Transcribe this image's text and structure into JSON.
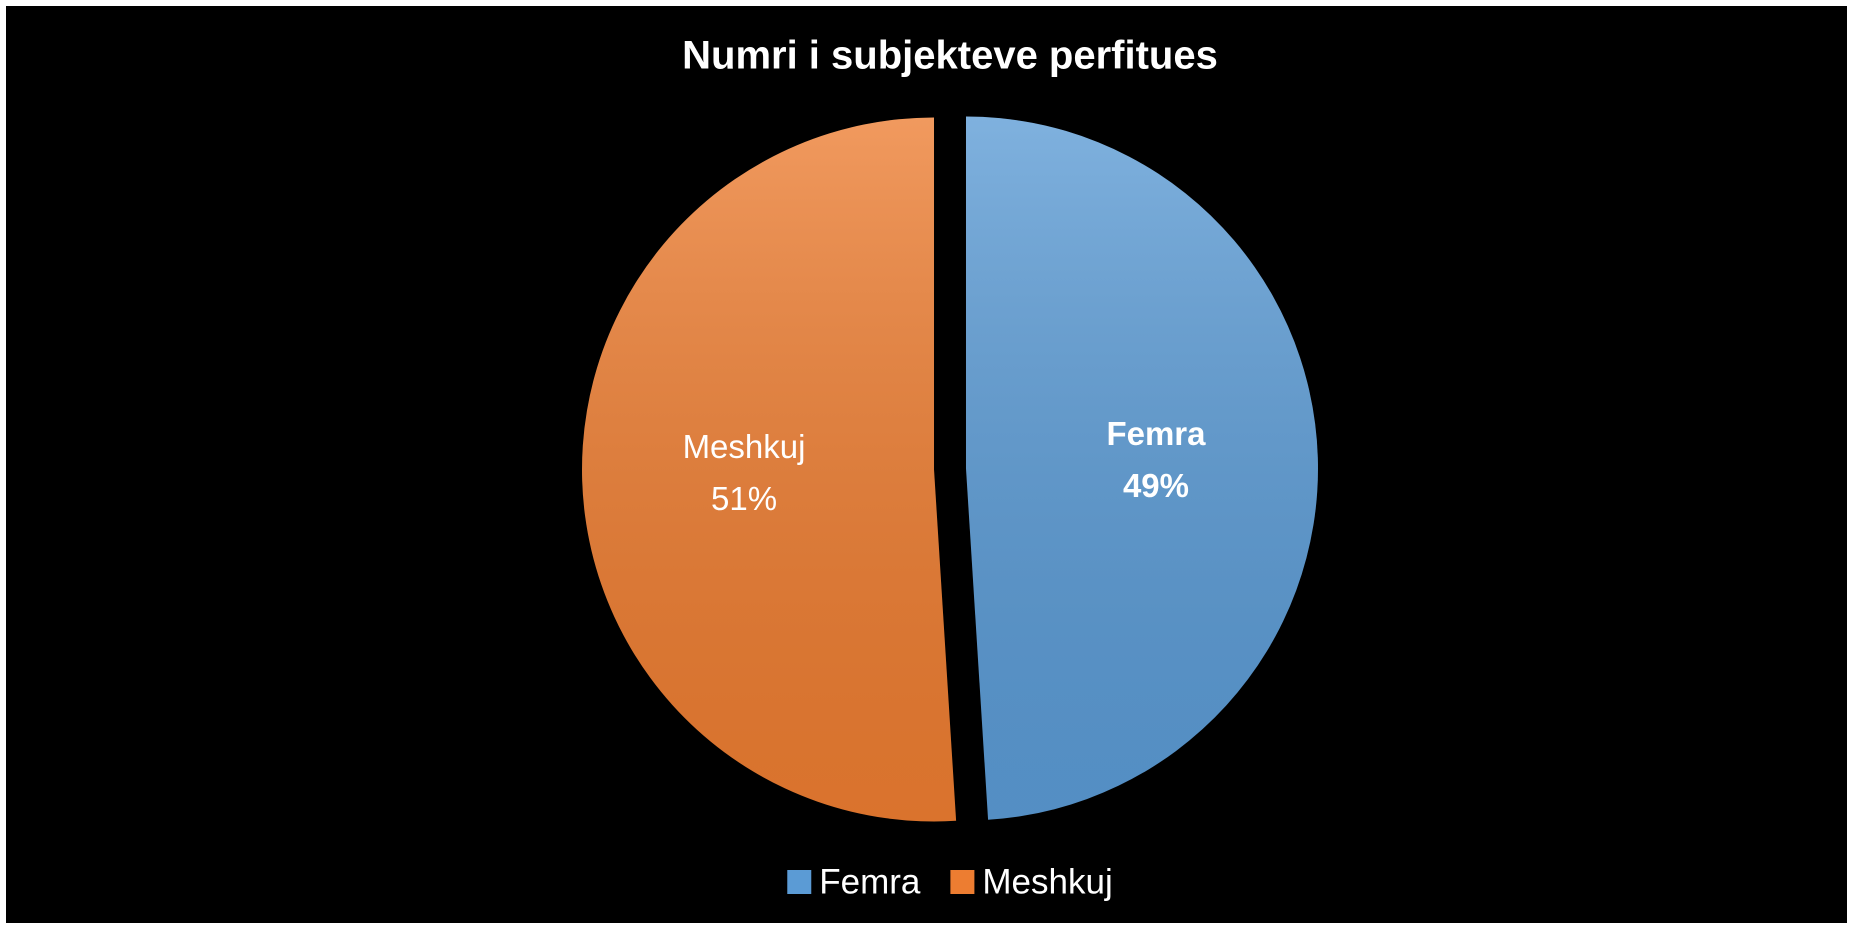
{
  "chart_data": {
    "type": "pie",
    "title": "Numri i subjekteve perfitues",
    "categories": [
      "Femra",
      "Meshkuj"
    ],
    "values": [
      49,
      51
    ],
    "value_labels": [
      "49%",
      "51%"
    ],
    "colors": [
      "#5b9bd5",
      "#ed7d31"
    ],
    "legend": "bottom"
  }
}
